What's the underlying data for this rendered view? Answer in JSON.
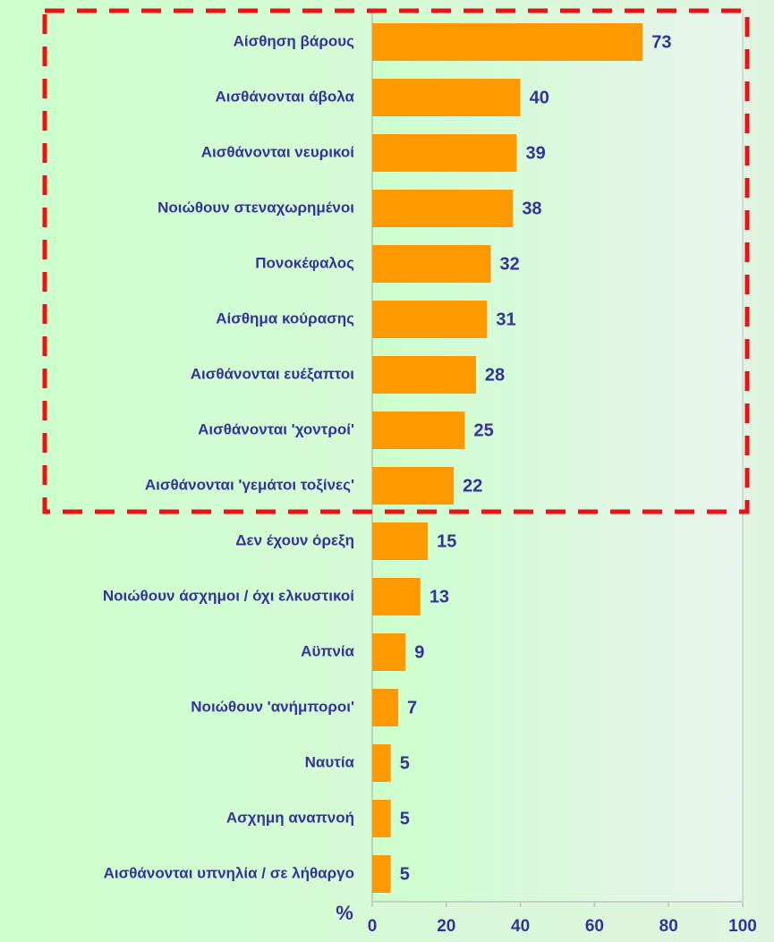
{
  "chart_data": {
    "type": "bar",
    "orientation": "horizontal",
    "categories": [
      "Αίσθηση βάρους",
      "Αισθάνονται άβολα",
      "Αισθάνονται νευρικοί",
      "Νοιώθουν στεναχωρημένοι",
      "Πονοκέφαλος",
      "Αίσθημα κούρασης",
      "Αισθάνονται ευέξαπτοι",
      "Αισθάνονται 'χοντροί'",
      "Αισθάνονται 'γεμάτοι τοξίνες'",
      "Δεν έχουν όρεξη",
      "Νοιώθουν άσχημοι / όχι ελκυστικοί",
      "Αϋπνία",
      "Νοιώθουν 'ανήμποροι'",
      "Ναυτία",
      "Ασχημη αναπνοή",
      "Αισθάνονται υπνηλία / σε λήθαργο"
    ],
    "values": [
      73,
      40,
      39,
      38,
      32,
      31,
      28,
      25,
      22,
      15,
      13,
      9,
      7,
      5,
      5,
      5
    ],
    "color": "#ff9900",
    "xlabel": "%",
    "xlim": [
      0,
      100
    ],
    "xticks": [
      0,
      20,
      40,
      60,
      80,
      100
    ]
  }
}
